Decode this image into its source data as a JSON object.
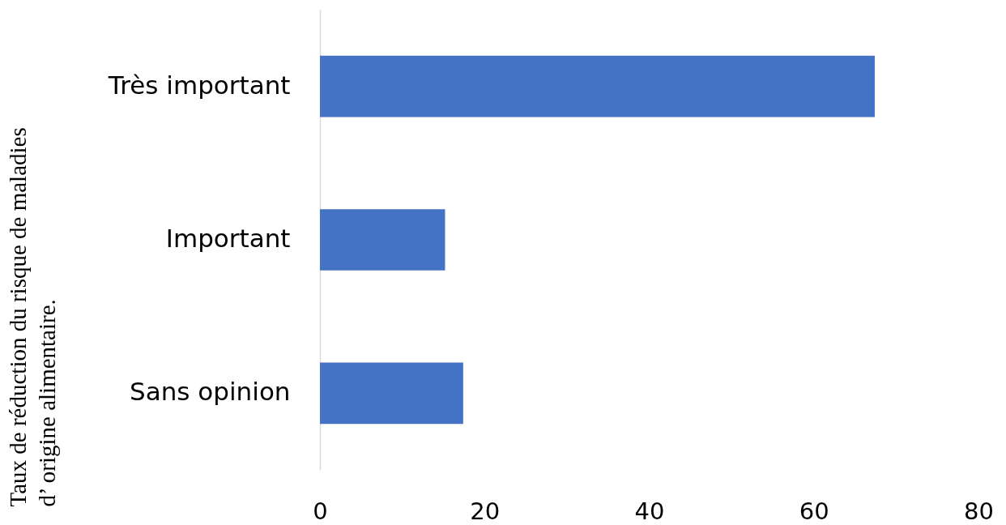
{
  "chart_data": {
    "type": "bar",
    "orientation": "horizontal",
    "ylabel": "Taux de réduction du risque de maladies\nd’ origine alimentaire.",
    "categories": [
      "Très important",
      "Important",
      "Sans opinion"
    ],
    "values": [
      67.4,
      15.2,
      17.4
    ],
    "color": "#4472c4",
    "xlim": [
      0,
      80
    ],
    "xticks": [
      0,
      20,
      40,
      60,
      80
    ],
    "grid": false
  }
}
